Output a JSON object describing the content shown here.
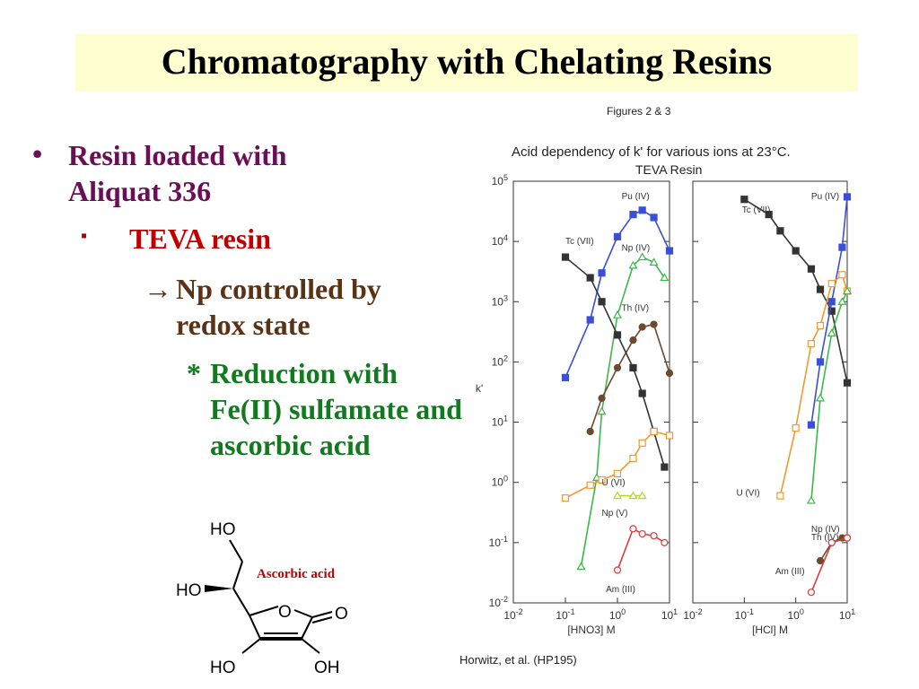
{
  "slide": {
    "title": "Chromatography with Chelating Resins",
    "bullets": {
      "b1_marker": "•",
      "b1": "Resin loaded with Aliquat 336",
      "b2_marker": "▪",
      "b2": "TEVA resin",
      "b3_marker": "→",
      "b3": "Np controlled by redox state",
      "b4_marker": "*",
      "b4": "Reduction with Fe(II) sulfamate and ascorbic acid"
    },
    "structure": {
      "label": "Ascorbic acid",
      "atoms": {
        "ho_top": "HO",
        "ho_mid": "HO",
        "o_ring": "O",
        "o_carbonyl": "O",
        "ho_bottom": "HO",
        "oh_bottom": "OH"
      }
    }
  },
  "figure": {
    "caption": "Figures 2 & 3",
    "title": "Acid dependency of k' for various ions at 23°C.",
    "subtitle": "TEVA Resin",
    "source": "Horwitz, et al. (HP195)"
  },
  "colors": {
    "pu": "#3b4fd6",
    "np": "#3cb84a",
    "th": "#6b4a2e",
    "tc": "#333333",
    "u": "#ef9a2e",
    "am": "#d63c3c",
    "np_v": "#b8d82a"
  },
  "chart_data": [
    {
      "type": "line",
      "log_x": true,
      "log_y": true,
      "xlim": [
        0.01,
        10
      ],
      "ylim": [
        0.01,
        100000
      ],
      "xlabel": "[HNO3] M",
      "ylabel": "k'",
      "x_ticks": [
        "10-2",
        "10-1",
        "100",
        "101"
      ],
      "y_ticks": [
        "10-2",
        "10-1",
        "100",
        "101",
        "102",
        "103",
        "104",
        "105"
      ],
      "series": [
        {
          "name": "Pu (IV)",
          "key": "pu",
          "marker": "square-filled",
          "points": [
            [
              0.1,
              55
            ],
            [
              0.3,
              500
            ],
            [
              0.5,
              3000
            ],
            [
              1,
              12000
            ],
            [
              2,
              28000
            ],
            [
              3,
              33000
            ],
            [
              5,
              25000
            ],
            [
              10,
              7000
            ]
          ]
        },
        {
          "name": "Np (IV)",
          "key": "np",
          "marker": "triangle-open",
          "points": [
            [
              0.2,
              0.04
            ],
            [
              0.4,
              1.2
            ],
            [
              0.5,
              15
            ],
            [
              1,
              600
            ],
            [
              2,
              4000
            ],
            [
              3,
              5500
            ],
            [
              5,
              4500
            ],
            [
              8,
              2500
            ]
          ]
        },
        {
          "name": "Th (IV)",
          "key": "th",
          "marker": "circle-filled",
          "points": [
            [
              0.3,
              7
            ],
            [
              0.5,
              25
            ],
            [
              1,
              80
            ],
            [
              2,
              230
            ],
            [
              3,
              380
            ],
            [
              5,
              420
            ],
            [
              10,
              65
            ]
          ]
        },
        {
          "name": "Tc (VII)",
          "key": "tc",
          "marker": "square-filled",
          "points": [
            [
              0.1,
              5500
            ],
            [
              0.3,
              2500
            ],
            [
              0.5,
              1000
            ],
            [
              1,
              280
            ],
            [
              2,
              80
            ],
            [
              3,
              30
            ],
            [
              5,
              7
            ],
            [
              8,
              1.8
            ]
          ]
        },
        {
          "name": "U (VI)",
          "key": "u",
          "marker": "square-open",
          "points": [
            [
              0.1,
              0.55
            ],
            [
              0.3,
              0.9
            ],
            [
              0.5,
              1.1
            ],
            [
              1,
              1.4
            ],
            [
              2,
              2.5
            ],
            [
              3,
              4.5
            ],
            [
              5,
              7
            ],
            [
              10,
              6
            ]
          ]
        },
        {
          "name": "Np (V)",
          "key": "np_v",
          "marker": "triangle-open",
          "points": [
            [
              1,
              0.6
            ],
            [
              2,
              0.6
            ],
            [
              3,
              0.6
            ]
          ]
        },
        {
          "name": "Am (III)",
          "key": "am",
          "marker": "circle-open",
          "points": [
            [
              1,
              0.035
            ],
            [
              2,
              0.17
            ],
            [
              3,
              0.14
            ],
            [
              5,
              0.13
            ],
            [
              8,
              0.1
            ]
          ]
        }
      ]
    },
    {
      "type": "line",
      "log_x": true,
      "log_y": true,
      "xlim": [
        0.01,
        10
      ],
      "ylim": [
        0.01,
        100000
      ],
      "xlabel": "[HCl] M",
      "ylabel": "",
      "x_ticks": [
        "10-2",
        "10-1",
        "100",
        "101"
      ],
      "series": [
        {
          "name": "Tc (VII)",
          "key": "tc",
          "marker": "square-filled",
          "points": [
            [
              0.1,
              50000
            ],
            [
              0.3,
              28000
            ],
            [
              0.5,
              15000
            ],
            [
              1,
              7000
            ],
            [
              2,
              3500
            ],
            [
              3,
              1600
            ],
            [
              5,
              700
            ],
            [
              10,
              45
            ]
          ]
        },
        {
          "name": "Pu (IV)",
          "key": "pu",
          "marker": "square-filled",
          "points": [
            [
              2,
              9
            ],
            [
              3,
              100
            ],
            [
              5,
              1000
            ],
            [
              8,
              8000
            ],
            [
              10,
              55000
            ]
          ]
        },
        {
          "name": "U (VI)",
          "key": "u",
          "marker": "square-open",
          "points": [
            [
              0.5,
              0.6
            ],
            [
              1,
              8
            ],
            [
              2,
              200
            ],
            [
              3,
              400
            ],
            [
              5,
              2000
            ],
            [
              8,
              2800
            ],
            [
              10,
              1500
            ]
          ]
        },
        {
          "name": "Np (IV)",
          "key": "np",
          "marker": "triangle-open",
          "points": [
            [
              2,
              0.5
            ],
            [
              3,
              25
            ],
            [
              5,
              300
            ],
            [
              8,
              1000
            ],
            [
              10,
              1500
            ]
          ]
        },
        {
          "name": "Th (IV)",
          "key": "th",
          "marker": "circle-filled",
          "points": [
            [
              3,
              0.05
            ],
            [
              5,
              0.1
            ],
            [
              8,
              0.12
            ],
            [
              10,
              0.12
            ]
          ]
        },
        {
          "name": "Am (III)",
          "key": "am",
          "marker": "circle-open",
          "points": [
            [
              2,
              0.015
            ],
            [
              5,
              0.1
            ],
            [
              10,
              0.12
            ]
          ]
        }
      ]
    }
  ]
}
